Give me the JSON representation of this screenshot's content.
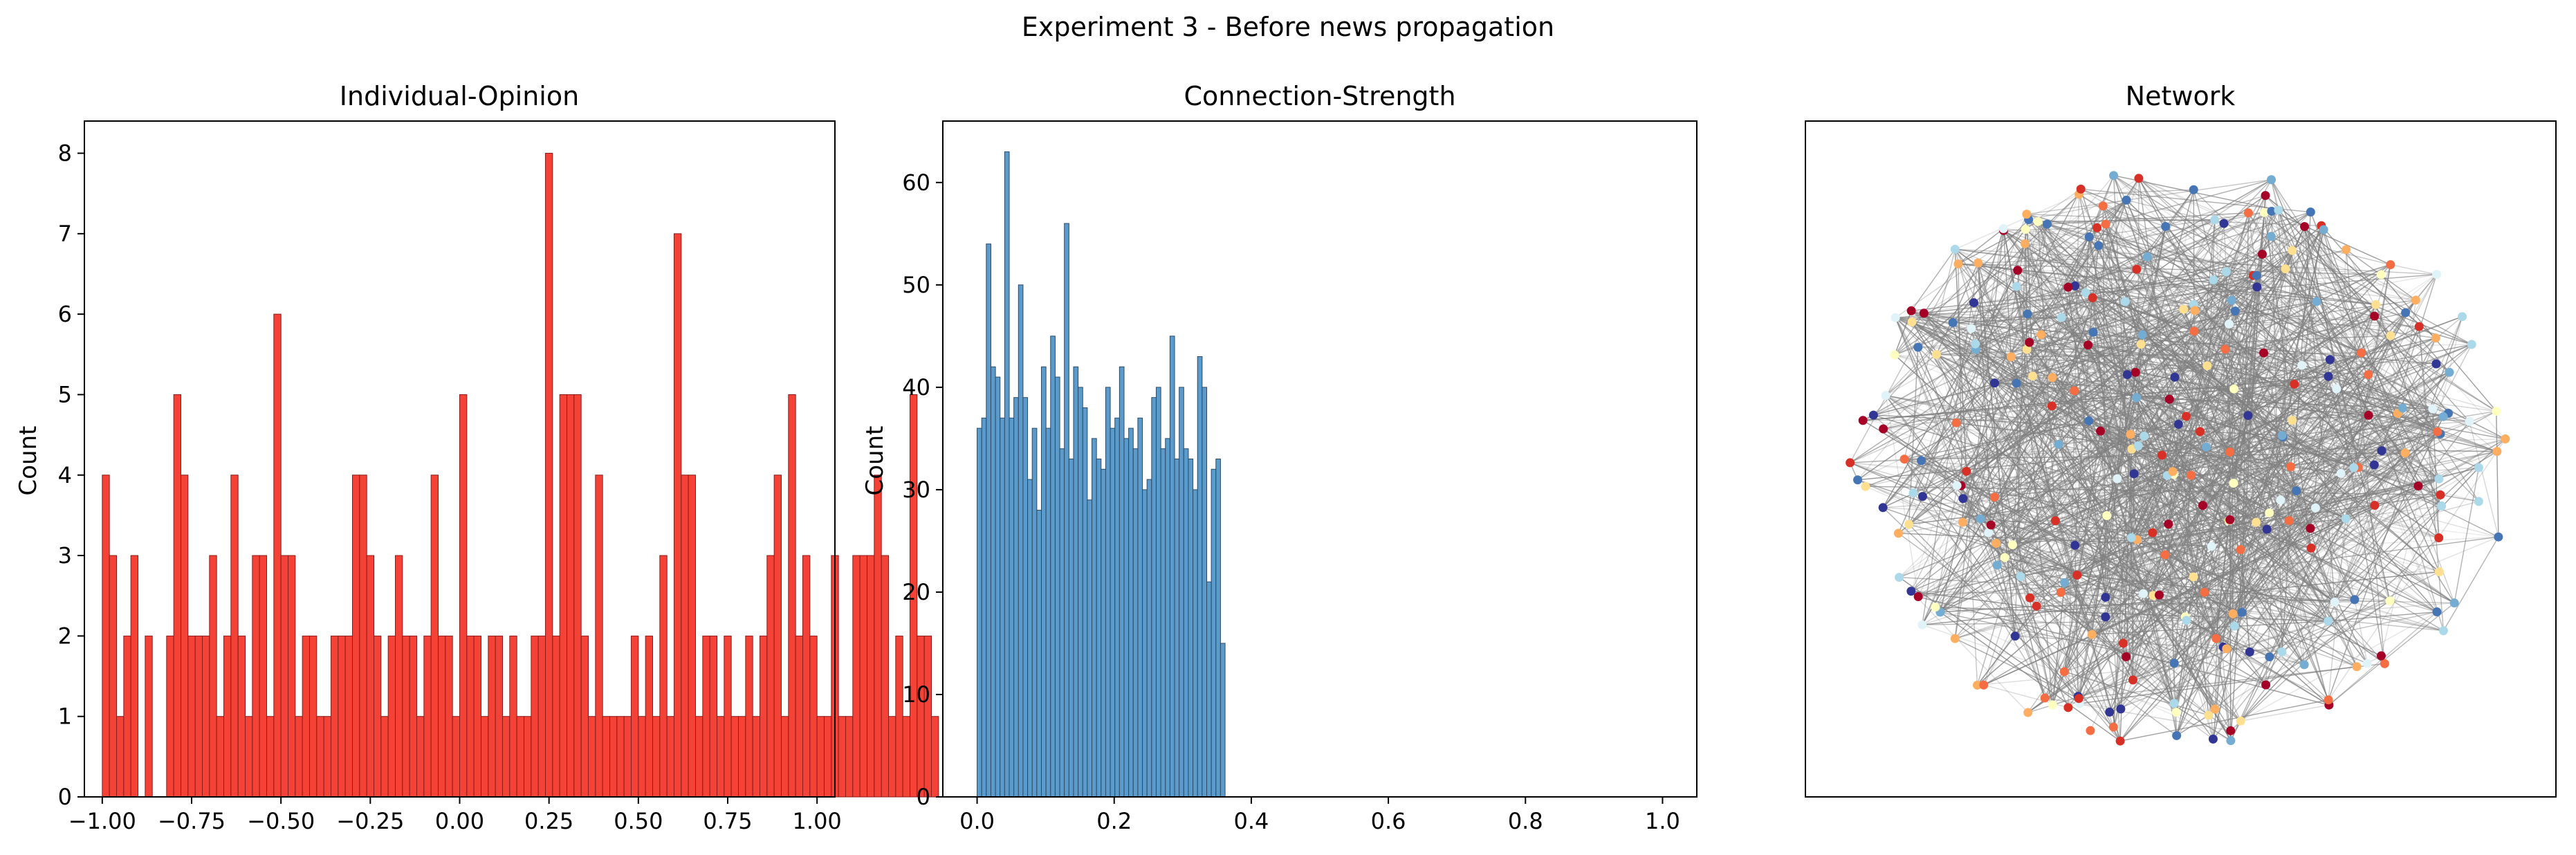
{
  "figure": {
    "title": "Experiment 3 - Before news propagation"
  },
  "chart_data": [
    {
      "type": "bar",
      "title": "Individual-Opinion",
      "xlabel": "",
      "ylabel": "Count",
      "xlim": [
        -1.05,
        1.05
      ],
      "ylim": [
        0,
        8.4
      ],
      "x_ticks": [
        -1.0,
        -0.75,
        -0.5,
        -0.25,
        0.0,
        0.25,
        0.5,
        0.75,
        1.0
      ],
      "x_tick_labels": [
        "−1.00",
        "−0.75",
        "−0.50",
        "−0.25",
        "0.00",
        "0.25",
        "0.50",
        "0.75",
        "1.00"
      ],
      "y_ticks": [
        0,
        1,
        2,
        3,
        4,
        5,
        6,
        7,
        8
      ],
      "y_tick_labels": [
        "0",
        "1",
        "2",
        "3",
        "4",
        "5",
        "6",
        "7",
        "8"
      ],
      "bin_start": -1.0,
      "bin_width": 0.02,
      "values": [
        4,
        3,
        1,
        2,
        3,
        0,
        2,
        0,
        0,
        2,
        5,
        4,
        2,
        2,
        2,
        3,
        1,
        2,
        4,
        2,
        1,
        3,
        3,
        1,
        6,
        3,
        3,
        1,
        2,
        2,
        1,
        1,
        2,
        2,
        2,
        4,
        4,
        3,
        2,
        1,
        2,
        3,
        2,
        2,
        1,
        2,
        4,
        2,
        2,
        1,
        5,
        2,
        2,
        1,
        2,
        2,
        1,
        2,
        1,
        1,
        2,
        2,
        8,
        2,
        5,
        5,
        5,
        2,
        1,
        4,
        1,
        1,
        1,
        1,
        2,
        1,
        2,
        1,
        3,
        1,
        7,
        4,
        4,
        1,
        2,
        2,
        1,
        2,
        1,
        1,
        2,
        1,
        2,
        3,
        4,
        1,
        5,
        2,
        3,
        2,
        1,
        1,
        3,
        1,
        1,
        3,
        3,
        3,
        4,
        3,
        1,
        2,
        1,
        5,
        2,
        2,
        1
      ],
      "bar_color": "#f44336",
      "edge_color": "#8b1a1a"
    },
    {
      "type": "bar",
      "title": "Connection-Strength",
      "xlabel": "",
      "ylabel": "Count",
      "xlim": [
        -0.05,
        1.05
      ],
      "ylim": [
        0,
        66
      ],
      "x_ticks": [
        0.0,
        0.2,
        0.4,
        0.6,
        0.8,
        1.0
      ],
      "x_tick_labels": [
        "0.0",
        "0.2",
        "0.4",
        "0.6",
        "0.8",
        "1.0"
      ],
      "y_ticks": [
        0,
        10,
        20,
        30,
        40,
        50,
        60
      ],
      "y_tick_labels": [
        "0",
        "10",
        "20",
        "30",
        "40",
        "50",
        "60"
      ],
      "bin_start": 0.0,
      "bin_width": 0.0067,
      "values": [
        36,
        37,
        54,
        42,
        41,
        37,
        63,
        37,
        39,
        50,
        39,
        31,
        36,
        28,
        42,
        36,
        45,
        41,
        34,
        56,
        33,
        42,
        40,
        38,
        29,
        35,
        33,
        32,
        40,
        36,
        37,
        42,
        35,
        36,
        34,
        37,
        30,
        31,
        39,
        40,
        34,
        35,
        45,
        33,
        40,
        34,
        33,
        30,
        43,
        40,
        21,
        32,
        33,
        15
      ],
      "bar_color": "#5b9bcb",
      "edge_color": "#2c4a66"
    }
  ],
  "network": {
    "title": "Network",
    "node_palette": [
      "#a50026",
      "#d73027",
      "#f46d43",
      "#fdae61",
      "#fee090",
      "#ffffbf",
      "#e0f3f8",
      "#abd9e9",
      "#74add1",
      "#4575b4",
      "#313695"
    ],
    "edge_color": "#808080"
  }
}
